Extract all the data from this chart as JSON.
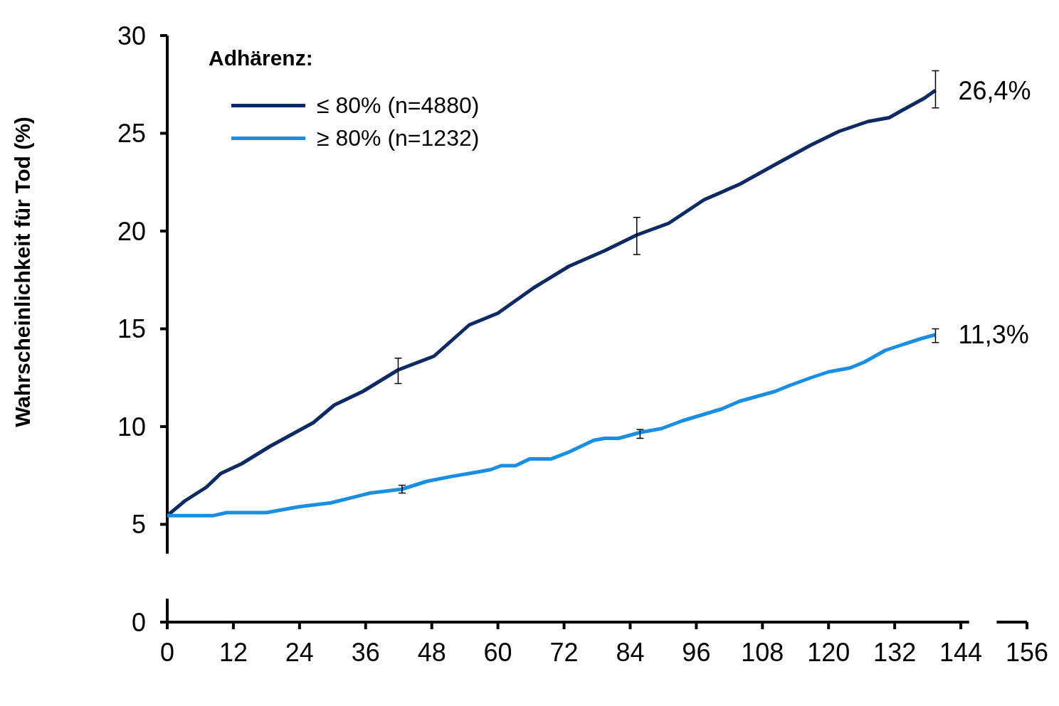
{
  "chart_data": {
    "type": "line",
    "ylabel": "Wahrscheinlichkeit für Tod (%)",
    "legend_title": "Adhärenz:",
    "legend": "top left",
    "grid": false,
    "marker": "none",
    "line_style": "solid",
    "xlim": [
      0,
      156
    ],
    "xticks": [
      0,
      12,
      24,
      36,
      48,
      60,
      72,
      84,
      96,
      108,
      120,
      132,
      144,
      156
    ],
    "ylim": [
      0,
      30
    ],
    "yticks": [
      0,
      5,
      10,
      15,
      20,
      25,
      30
    ],
    "series": [
      {
        "name": "≤ 80% (n=4880)",
        "color": "#0d2a63",
        "x": [
          0,
          3.2,
          7.1,
          9.7,
          13.5,
          18.7,
          22.6,
          26.5,
          30.3,
          35.5,
          41.9,
          48.4,
          54.8,
          60,
          66.5,
          72.9,
          79.4,
          85.2,
          91,
          97.4,
          103.9,
          110.3,
          116.8,
          121.9,
          127.1,
          131,
          133.5,
          137.4,
          139.4
        ],
        "values": [
          5.45,
          6.2,
          6.9,
          7.6,
          8.1,
          9.0,
          9.6,
          10.2,
          11.1,
          11.8,
          12.9,
          13.6,
          15.2,
          15.8,
          17.1,
          18.2,
          19.0,
          19.8,
          20.4,
          21.6,
          22.4,
          23.4,
          24.4,
          25.1,
          25.6,
          25.8,
          26.2,
          26.8,
          27.2
        ],
        "errors": [
          null,
          null,
          null,
          null,
          null,
          null,
          null,
          null,
          null,
          null,
          [
            12.2,
            13.5
          ],
          null,
          null,
          null,
          null,
          null,
          null,
          [
            18.8,
            20.7
          ],
          null,
          null,
          null,
          null,
          null,
          null,
          null,
          null,
          null,
          null,
          [
            26.3,
            28.2
          ]
        ]
      },
      {
        "name": "≥ 80% (n=1232)",
        "color": "#1a8ee0",
        "x": [
          0,
          8.4,
          10.8,
          18,
          23.9,
          29.7,
          36.8,
          42.6,
          47.1,
          51.6,
          56.8,
          58.7,
          60.6,
          63.2,
          65.8,
          69.7,
          72.9,
          77.4,
          79.4,
          81.9,
          85.8,
          89.7,
          93.5,
          100.6,
          103.9,
          110.3,
          112.9,
          116.8,
          120,
          123.9,
          126.5,
          130.3,
          133.5,
          136.8,
          139.4
        ],
        "values": [
          5.45,
          5.45,
          5.6,
          5.6,
          5.9,
          6.1,
          6.6,
          6.8,
          7.2,
          7.45,
          7.7,
          7.8,
          8.0,
          8.0,
          8.35,
          8.35,
          8.7,
          9.3,
          9.4,
          9.4,
          9.7,
          9.9,
          10.3,
          10.9,
          11.3,
          11.8,
          12.1,
          12.5,
          12.8,
          13.0,
          13.3,
          13.9,
          14.2,
          14.5,
          14.7
        ],
        "errors": [
          null,
          null,
          null,
          null,
          null,
          null,
          null,
          [
            6.6,
            7.0
          ],
          null,
          null,
          null,
          null,
          null,
          null,
          null,
          null,
          null,
          null,
          null,
          null,
          [
            9.4,
            9.85
          ],
          null,
          null,
          null,
          null,
          null,
          null,
          null,
          null,
          null,
          null,
          null,
          null,
          null,
          [
            14.3,
            15.0
          ]
        ]
      }
    ],
    "annotations": [
      {
        "text": "26,4%",
        "x": 139.4,
        "y": 27.2
      },
      {
        "text": "11,3%",
        "x": 139.4,
        "y": 14.7
      }
    ]
  }
}
